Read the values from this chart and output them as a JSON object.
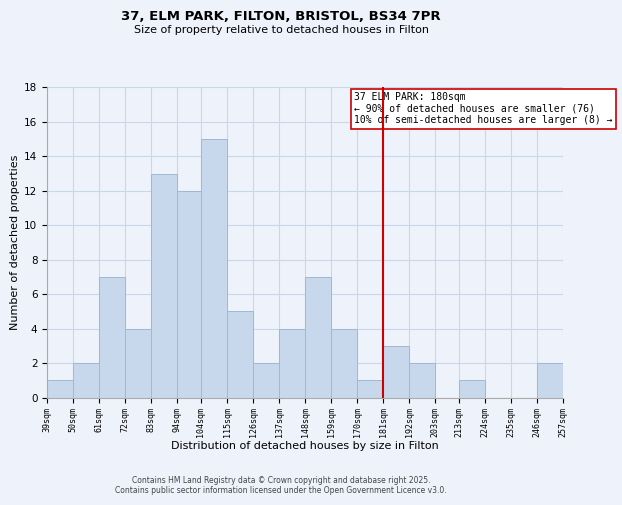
{
  "title": "37, ELM PARK, FILTON, BRISTOL, BS34 7PR",
  "subtitle": "Size of property relative to detached houses in Filton",
  "xlabel": "Distribution of detached houses by size in Filton",
  "ylabel": "Number of detached properties",
  "bar_color": "#c8d8ec",
  "bar_edge_color": "#a0b8d0",
  "grid_color": "#c8d8ec",
  "background_color": "#eef2fa",
  "plot_bg_color": "#eef2fa",
  "vline_x": 181,
  "vline_color": "#cc0000",
  "annotation_title": "37 ELM PARK: 180sqm",
  "annotation_line1": "← 90% of detached houses are smaller (76)",
  "annotation_line2": "10% of semi-detached houses are larger (8) →",
  "annotation_box_facecolor": "#ffffff",
  "annotation_box_edgecolor": "#cc0000",
  "bins": [
    39,
    50,
    61,
    72,
    83,
    94,
    104,
    115,
    126,
    137,
    148,
    159,
    170,
    181,
    192,
    203,
    213,
    224,
    235,
    246,
    257
  ],
  "counts": [
    1,
    2,
    7,
    4,
    13,
    12,
    15,
    5,
    2,
    4,
    7,
    4,
    1,
    3,
    2,
    0,
    1,
    0,
    0,
    2
  ],
  "ylim": [
    0,
    18
  ],
  "yticks": [
    0,
    2,
    4,
    6,
    8,
    10,
    12,
    14,
    16,
    18
  ],
  "footer_line1": "Contains HM Land Registry data © Crown copyright and database right 2025.",
  "footer_line2": "Contains public sector information licensed under the Open Government Licence v3.0."
}
